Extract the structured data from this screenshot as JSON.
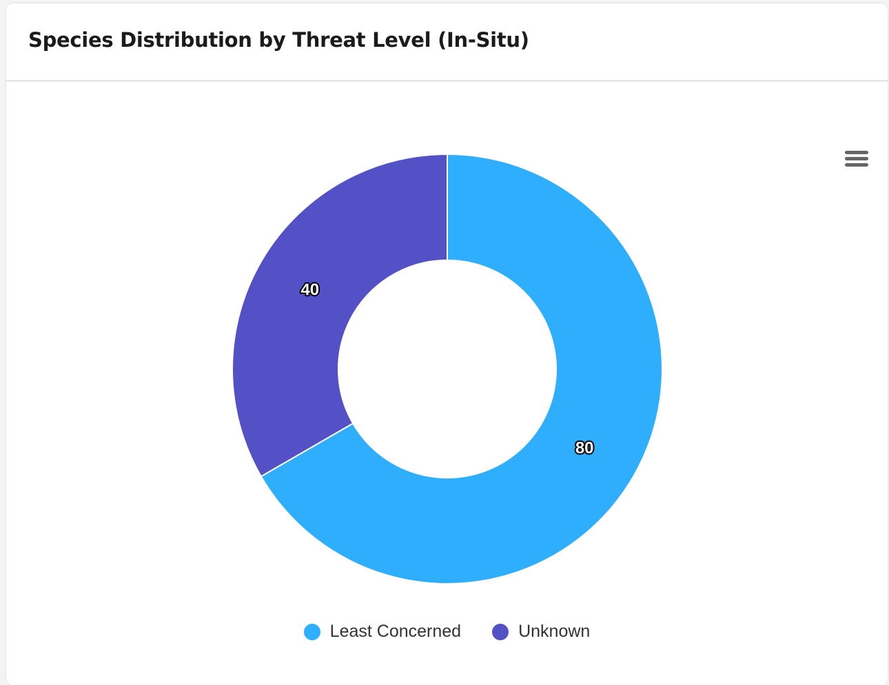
{
  "header": {
    "title": "Species Distribution by Threat Level (In-Situ)"
  },
  "toolbar": {
    "menu_icon": "hamburger-menu-icon"
  },
  "chart_data": {
    "type": "pie",
    "variant": "donut",
    "title": "Species Distribution by Threat Level (In-Situ)",
    "categories": [
      "Least Concerned",
      "Unknown"
    ],
    "values": [
      80,
      40
    ],
    "colors": [
      "#2eaefd",
      "#5451c6"
    ],
    "data_labels": [
      "80",
      "40"
    ],
    "legend_position": "bottom-center",
    "start_angle_deg": 0,
    "direction": "clockwise"
  }
}
